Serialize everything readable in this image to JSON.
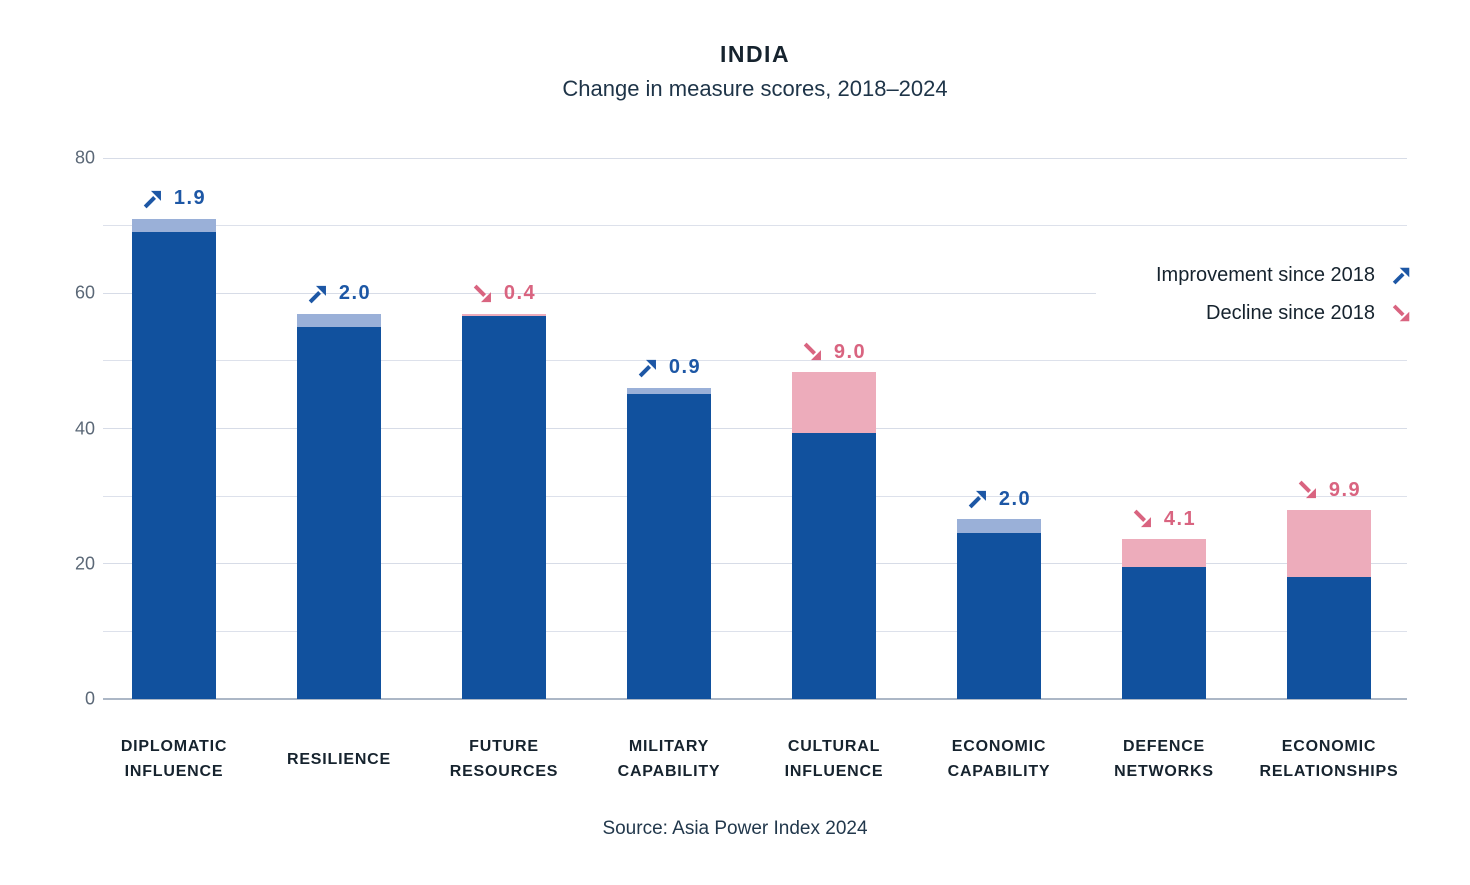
{
  "header": {
    "title": "INDIA",
    "subtitle": "Change in measure scores, 2018–2024"
  },
  "legend": {
    "improvement_label": "Improvement since 2018",
    "decline_label": "Decline since 2018",
    "improvement_icon": "arrow-up-right-icon",
    "decline_icon": "arrow-down-right-icon"
  },
  "source": "Source: Asia Power Index 2024",
  "colors": {
    "bar_main": "#11519E",
    "improvement_cap": "#9AB0D8",
    "decline_cap": "#EDACBB",
    "improvement_accent": "#1D57A5",
    "decline_accent": "#D96480",
    "gridline": "#D7DCE7",
    "axis_line": "#ACB7C6",
    "tick_label": "#5B6877",
    "text_dark": "#16232E"
  },
  "chart_data": {
    "type": "bar",
    "title": "INDIA",
    "subtitle": "Change in measure scores, 2018–2024",
    "ylabel": "",
    "xlabel": "",
    "ylim": [
      0,
      80
    ],
    "yticks": [
      0,
      20,
      40,
      60,
      80
    ],
    "minor_gridline_step": 10,
    "grid": true,
    "legend_position": "upper right",
    "categories": [
      "DIPLOMATIC INFLUENCE",
      "RESILIENCE",
      "FUTURE RESOURCES",
      "MILITARY CAPABILITY",
      "CULTURAL INFLUENCE",
      "ECONOMIC CAPABILITY",
      "DEFENCE NETWORKS",
      "ECONOMIC RELATIONSHIPS"
    ],
    "bars": [
      {
        "category": "DIPLOMATIC INFLUENCE",
        "label_lines": [
          "DIPLOMATIC",
          "INFLUENCE"
        ],
        "direction": "improvement",
        "change": "1.9",
        "main_value": 69.1,
        "total_value": 71.0
      },
      {
        "category": "RESILIENCE",
        "label_lines": [
          "RESILIENCE"
        ],
        "direction": "improvement",
        "change": "2.0",
        "main_value": 55.0,
        "total_value": 57.0
      },
      {
        "category": "FUTURE RESOURCES",
        "label_lines": [
          "FUTURE",
          "RESOURCES"
        ],
        "direction": "decline",
        "change": "0.4",
        "main_value": 56.6,
        "total_value": 57.0
      },
      {
        "category": "MILITARY CAPABILITY",
        "label_lines": [
          "MILITARY",
          "CAPABILITY"
        ],
        "direction": "improvement",
        "change": "0.9",
        "main_value": 45.1,
        "total_value": 46.0
      },
      {
        "category": "CULTURAL INFLUENCE",
        "label_lines": [
          "CULTURAL",
          "INFLUENCE"
        ],
        "direction": "decline",
        "change": "9.0",
        "main_value": 39.3,
        "total_value": 48.3
      },
      {
        "category": "ECONOMIC CAPABILITY",
        "label_lines": [
          "ECONOMIC",
          "CAPABILITY"
        ],
        "direction": "improvement",
        "change": "2.0",
        "main_value": 24.6,
        "total_value": 26.6
      },
      {
        "category": "DEFENCE NETWORKS",
        "label_lines": [
          "DEFENCE",
          "NETWORKS"
        ],
        "direction": "decline",
        "change": "4.1",
        "main_value": 19.5,
        "total_value": 23.6
      },
      {
        "category": "ECONOMIC RELATIONSHIPS",
        "label_lines": [
          "ECONOMIC",
          "RELATIONSHIPS"
        ],
        "direction": "decline",
        "change": "9.9",
        "main_value": 18.0,
        "total_value": 27.9
      }
    ]
  }
}
